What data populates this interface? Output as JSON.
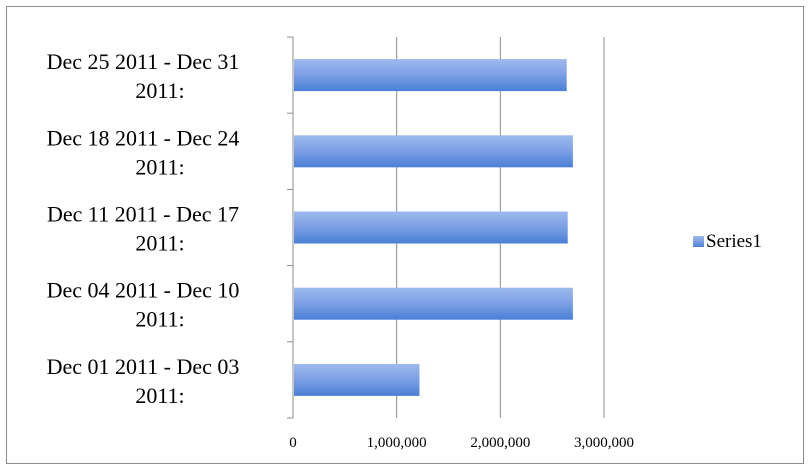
{
  "chart_data": {
    "type": "bar",
    "orientation": "horizontal",
    "categories": [
      "Dec 01 2011 - Dec 03 2011:",
      "Dec 04 2011 - Dec 10 2011:",
      "Dec 11 2011 - Dec 17 2011:",
      "Dec 18 2011 - Dec 24 2011:",
      "Dec 25 2011 - Dec 31 2011:"
    ],
    "category_lines": [
      [
        "Dec 01 2011 - Dec 03",
        "2011:"
      ],
      [
        "Dec 04 2011 - Dec 10",
        "2011:"
      ],
      [
        "Dec 11 2011 - Dec 17",
        "2011:"
      ],
      [
        "Dec 18 2011 - Dec 24",
        "2011:"
      ],
      [
        "Dec 25 2011 - Dec 31",
        "2011:"
      ]
    ],
    "series": [
      {
        "name": "Series1",
        "values": [
          1220000,
          2700000,
          2650000,
          2700000,
          2640000
        ]
      }
    ],
    "xlim": [
      0,
      3000000
    ],
    "x_ticks": [
      0,
      1000000,
      2000000,
      3000000
    ],
    "x_tick_labels": [
      "0",
      "1,000,000",
      "2,000,000",
      "3,000,000"
    ],
    "grid": true,
    "legend": {
      "position": "right",
      "entries": [
        "Series1"
      ]
    },
    "colors": {
      "bar_top": "#9db9ef",
      "bar_bottom": "#4a7fd6",
      "gridline": "#8c8c8c"
    }
  }
}
